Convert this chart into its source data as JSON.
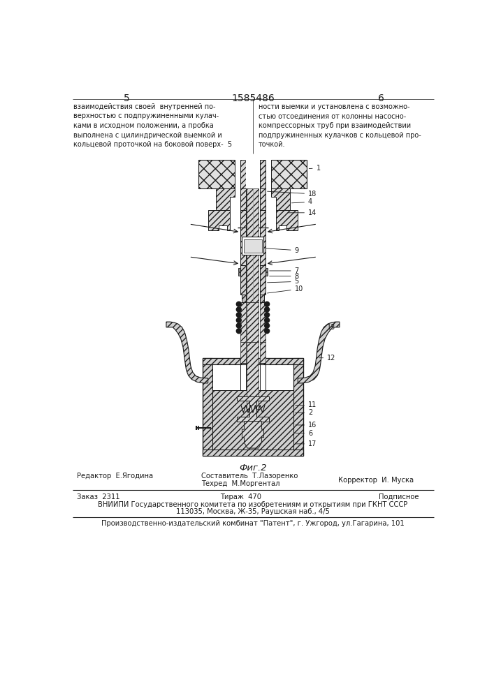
{
  "page_number_left": "5",
  "page_number_center": "1585486",
  "page_number_right": "6",
  "text_left": "взаимодействия своей  внутренней по-\nверхностью с подпружиненными кулач-\nками в исходном положении, а пробка\nвыполнена с цилиндрической выемкой и\nкольцевой проточкой на боковой поверх-  5",
  "text_right": "ности выемки и установлена с возможно-\nстью отсоединения от колонны насосно-\nкомпрессорных труб при взаимодействии\nподпружиненных кулачков с кольцевой про-\nточкой.",
  "fig_label": "Фиг.2",
  "editor_label": "Редактор  Е.Ягодина",
  "composer_label": "Составитель  Т.Лазоренко",
  "techred_label": "Техред  М.Моргентал",
  "corrector_label": "Корректор  И. Муска",
  "order_label": "Заказ  2311",
  "tirazh_label": "Тираж  470",
  "podpisnoe_label": "Подписное",
  "vniip_label": "ВНИИПИ Государственного комитета по изобретениям и открытиям при ГКНТ СССР",
  "addr_label": "113035, Москва, Ж-35, Раушская наб., 4/5",
  "prod_label": "Производственно-издательский комбинат \"Патент\", г. Ужгород, ул.Гагарина, 101",
  "bg_color": "#ffffff",
  "line_color": "#1a1a1a"
}
